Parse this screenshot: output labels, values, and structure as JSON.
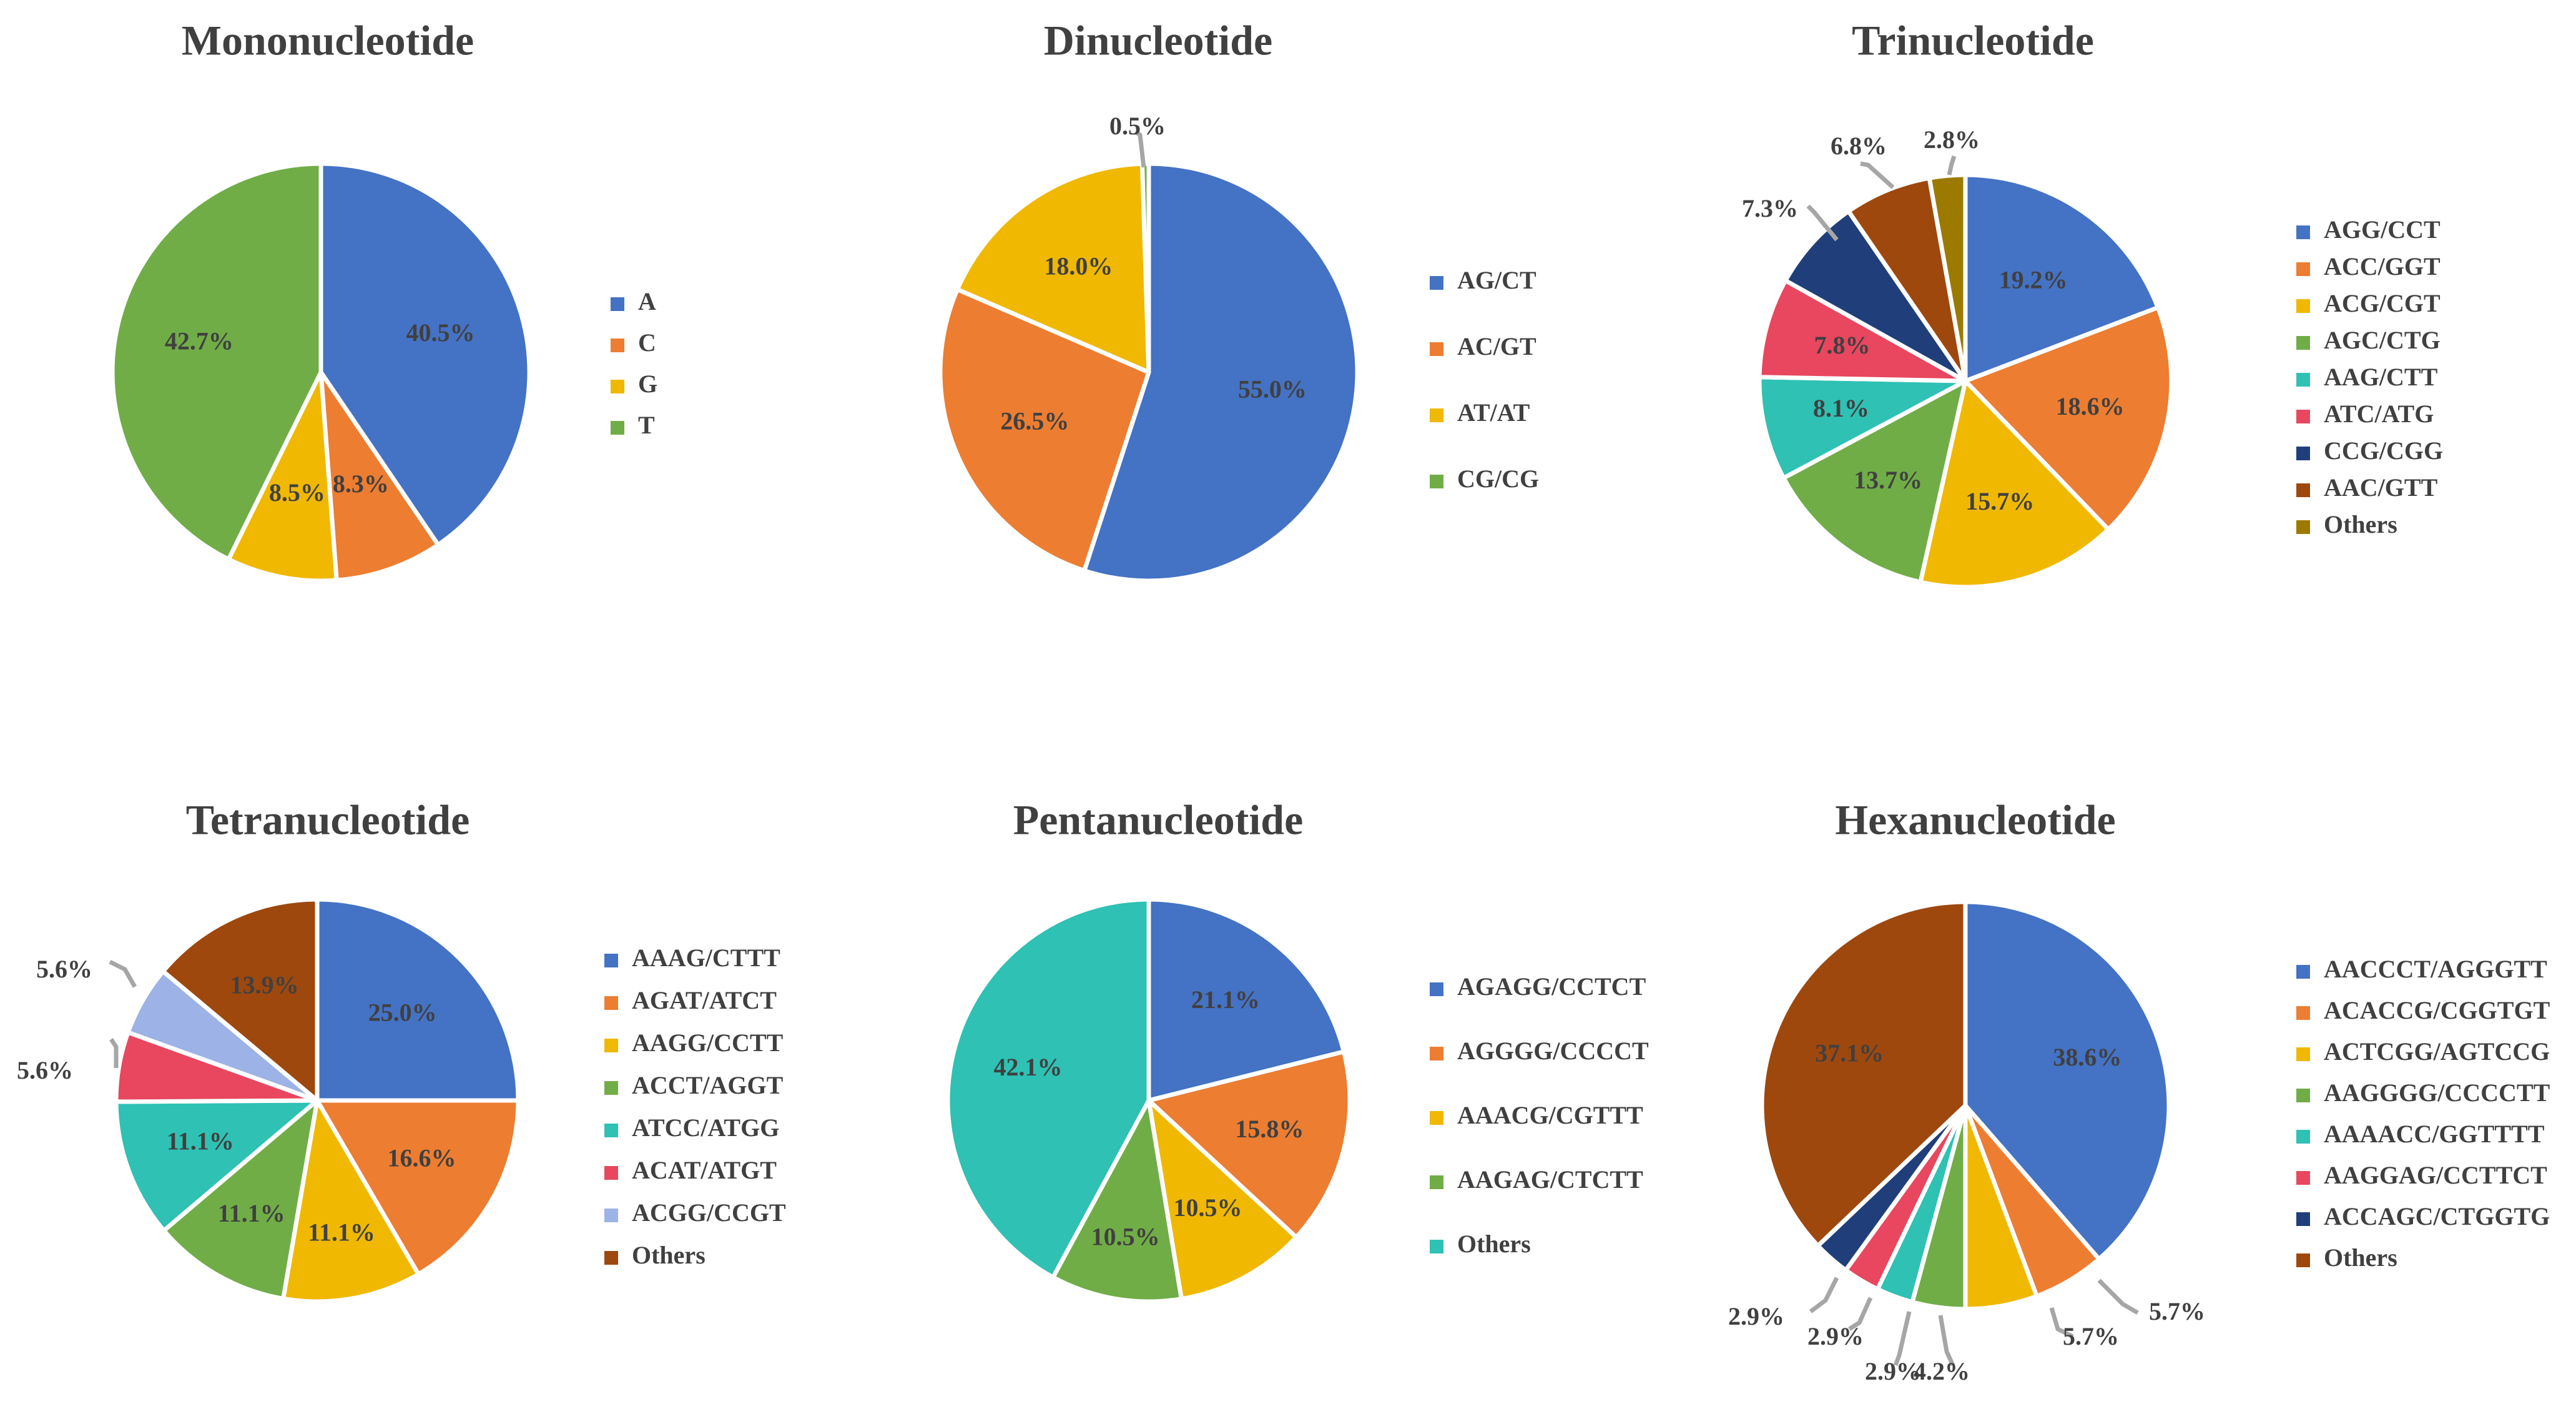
{
  "chart_data": [
    {
      "type": "pie",
      "title": "Mononucleotide",
      "categories": [
        "A",
        "C",
        "G",
        "T"
      ],
      "values": [
        40.5,
        8.3,
        8.5,
        42.7
      ],
      "labels": [
        "40.5%",
        "8.3%",
        "8.5%",
        "42.7%"
      ],
      "colors": [
        "#4472C4",
        "#ED7D31",
        "#F0B800",
        "#70AD47"
      ],
      "legend": "right"
    },
    {
      "type": "pie",
      "title": "Dinucleotide",
      "categories": [
        "AG/CT",
        "AC/GT",
        "AT/AT",
        "CG/CG"
      ],
      "values": [
        55.0,
        26.5,
        18.0,
        0.5
      ],
      "labels": [
        "55.0%",
        "26.5%",
        "18.0%",
        "0.5%"
      ],
      "colors": [
        "#4472C4",
        "#ED7D31",
        "#F0B800",
        "#70AD47"
      ],
      "legend": "right"
    },
    {
      "type": "pie",
      "title": "Trinucleotide",
      "categories": [
        "AGG/CCT",
        "ACC/GGT",
        "ACG/CGT",
        "AGC/CTG",
        "AAG/CTT",
        "ATC/ATG",
        "CCG/CGG",
        "AAC/GTT",
        "Others"
      ],
      "values": [
        19.2,
        18.6,
        15.7,
        13.7,
        8.1,
        7.8,
        7.3,
        6.8,
        2.8
      ],
      "labels": [
        "19.2%",
        "18.6%",
        "15.7%",
        "13.7%",
        "8.1%",
        "7.8%",
        "7.3%",
        "6.8%",
        "2.8%"
      ],
      "colors": [
        "#4472C4",
        "#ED7D31",
        "#F0B800",
        "#70AD47",
        "#2EC1B4",
        "#E8475F",
        "#203F7A",
        "#9E480E",
        "#9C7A00"
      ],
      "legend": "right"
    },
    {
      "type": "pie",
      "title": "Tetranucleotide",
      "categories": [
        "AAAG/CTTT",
        "AGAT/ATCT",
        "AAGG/CCTT",
        "ACCT/AGGT",
        "ATCC/ATGG",
        "ACAT/ATGT",
        "ACGG/CCGT",
        "Others"
      ],
      "values": [
        25.0,
        16.6,
        11.1,
        11.1,
        11.1,
        5.6,
        5.6,
        13.9
      ],
      "labels": [
        "25.0%",
        "16.6%",
        "11.1%",
        "11.1%",
        "11.1%",
        "5.6%",
        "5.6%",
        "13.9%"
      ],
      "colors": [
        "#4472C4",
        "#ED7D31",
        "#F0B800",
        "#70AD47",
        "#2EC1B4",
        "#E8475F",
        "#9DB2E6",
        "#9E480E"
      ],
      "legend": "right"
    },
    {
      "type": "pie",
      "title": "Pentanucleotide",
      "categories": [
        "AGAGG/CCTCT",
        "AGGGG/CCCCT",
        "AAACG/CGTTT",
        "AAGAG/CTCTT",
        "Others"
      ],
      "values": [
        21.1,
        15.8,
        10.5,
        10.5,
        42.1
      ],
      "labels": [
        "21.1%",
        "15.8%",
        "10.5%",
        "10.5%",
        "42.1%"
      ],
      "colors": [
        "#4472C4",
        "#ED7D31",
        "#F0B800",
        "#70AD47",
        "#2EC1B4"
      ],
      "legend": "right"
    },
    {
      "type": "pie",
      "title": "Hexanucleotide",
      "categories": [
        "AACCCT/AGGGTT",
        "ACACCG/CGGTGT",
        "ACTCGG/AGTCCG",
        "AAGGGG/CCCCTT",
        "AAAACC/GGTTTT",
        "AAGGAG/CCTTCT",
        "ACCAGC/CTGGTG",
        "Others"
      ],
      "values": [
        38.6,
        5.7,
        5.7,
        4.2,
        2.9,
        2.9,
        2.9,
        37.1
      ],
      "labels": [
        "38.6%",
        "5.7%",
        "5.7%",
        "4.2%",
        "2.9%",
        "2.9%",
        "2.9%",
        "37.1%"
      ],
      "colors": [
        "#4472C4",
        "#ED7D31",
        "#F0B800",
        "#70AD47",
        "#2EC1B4",
        "#E8475F",
        "#203F7A",
        "#9E480E"
      ],
      "legend": "right"
    }
  ]
}
